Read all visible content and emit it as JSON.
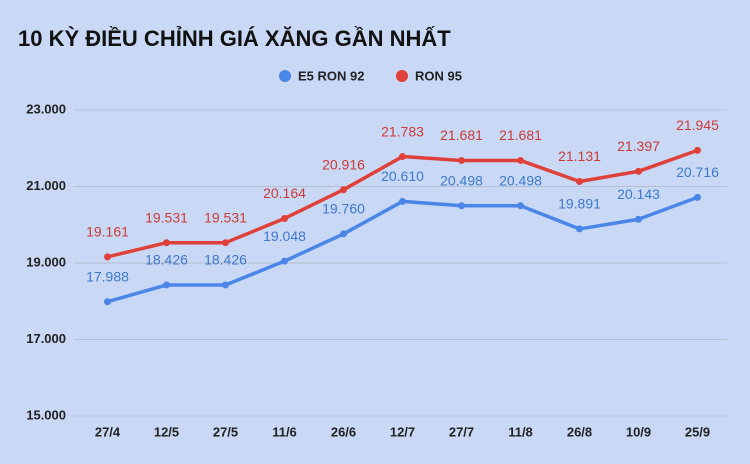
{
  "chart_data": {
    "type": "line",
    "title": "10 KỲ ĐIỀU CHỈNH GIÁ XĂNG GẦN NHẤT",
    "categories": [
      "27/4",
      "12/5",
      "27/5",
      "11/6",
      "26/6",
      "12/7",
      "27/7",
      "11/8",
      "26/8",
      "10/9",
      "25/9"
    ],
    "series": [
      {
        "name": "E5 RON 92",
        "color": "#4a86e8",
        "values": [
          17988,
          18426,
          18426,
          19048,
          19760,
          20610,
          20498,
          20498,
          19891,
          20143,
          20716
        ],
        "value_labels": [
          "17.988",
          "18.426",
          "18.426",
          "19.048",
          "19.760",
          "20.610",
          "20.498",
          "20.498",
          "19.891",
          "20.143",
          "20.716"
        ]
      },
      {
        "name": "RON 95",
        "color": "#e0403a",
        "values": [
          19161,
          19531,
          19531,
          20164,
          20916,
          21783,
          21681,
          21681,
          21131,
          21397,
          21945
        ],
        "value_labels": [
          "19.161",
          "19.531",
          "19.531",
          "20.164",
          "20.916",
          "21.783",
          "21.681",
          "21.681",
          "21.131",
          "21.397",
          "21.945"
        ]
      }
    ],
    "ylim": [
      15000,
      23000
    ],
    "yticks": [
      {
        "value": 15000,
        "label": "15.000"
      },
      {
        "value": 17000,
        "label": "17.000"
      },
      {
        "value": 19000,
        "label": "19.000"
      },
      {
        "value": 21000,
        "label": "21.000"
      },
      {
        "value": 23000,
        "label": "23.000"
      }
    ],
    "grid": true,
    "legend": "top"
  }
}
